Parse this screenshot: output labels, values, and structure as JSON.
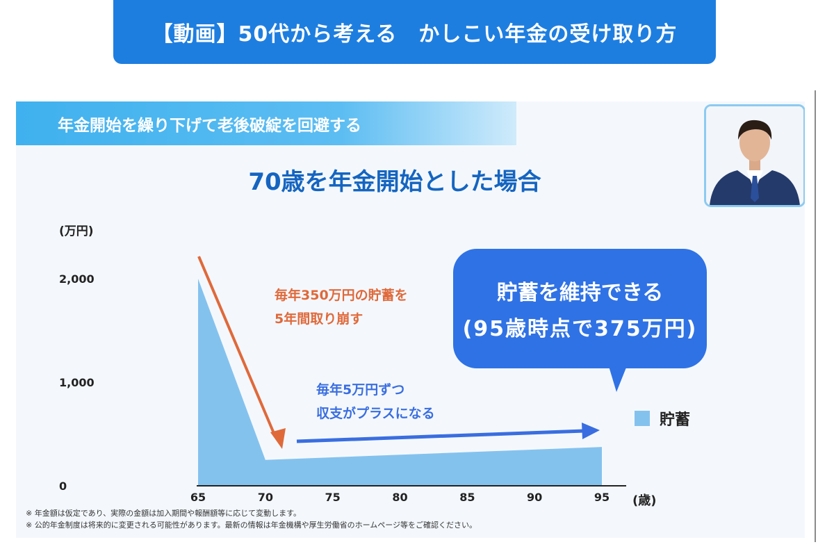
{
  "banner": {
    "title": "【動画】50代から考える　かしこい年金の受け取り方"
  },
  "slide": {
    "section_title": "年金開始を繰り下げて老後破綻を回避する",
    "chart_title": "70歳を年金開始とした場合",
    "bubble_line1": "貯蓄を維持できる",
    "bubble_line2": "(95歳時点で375万円)",
    "annotation_orange_line1": "毎年350万円の貯蓄を",
    "annotation_orange_line2": "5年間取り崩す",
    "annotation_blue_line1": "毎年5万円ずつ",
    "annotation_blue_line2": "収支がプラスになる",
    "footnote1": "※ 年金額は仮定であり、実際の金額は加入期間や報酬額等に応じて変動します。",
    "footnote2": "※ 公的年金制度は将来的に変更される可能性があります。最新の情報は年金機構や厚生労働省のホームページ等をご確認ください。"
  },
  "colors": {
    "banner": "#1e7ee0",
    "area": "#84c2ee",
    "orange_arrow": "#e0693a",
    "blue_arrow": "#3a6ee0",
    "bubble": "#2f72e5"
  },
  "chart_data": {
    "type": "area",
    "title": "70歳を年金開始とした場合",
    "ylabel": "(万円)",
    "xlabel": "(歳)",
    "x": [
      65,
      70,
      95
    ],
    "series": [
      {
        "name": "貯蓄",
        "values": [
          2000,
          250,
          375
        ]
      }
    ],
    "xticks": [
      "65",
      "70",
      "75",
      "80",
      "85",
      "90",
      "95"
    ],
    "yticks": [
      "0",
      "1,000",
      "2,000"
    ],
    "xlim": [
      65,
      95
    ],
    "ylim": [
      0,
      2000
    ],
    "grid": false,
    "legend": "right"
  }
}
